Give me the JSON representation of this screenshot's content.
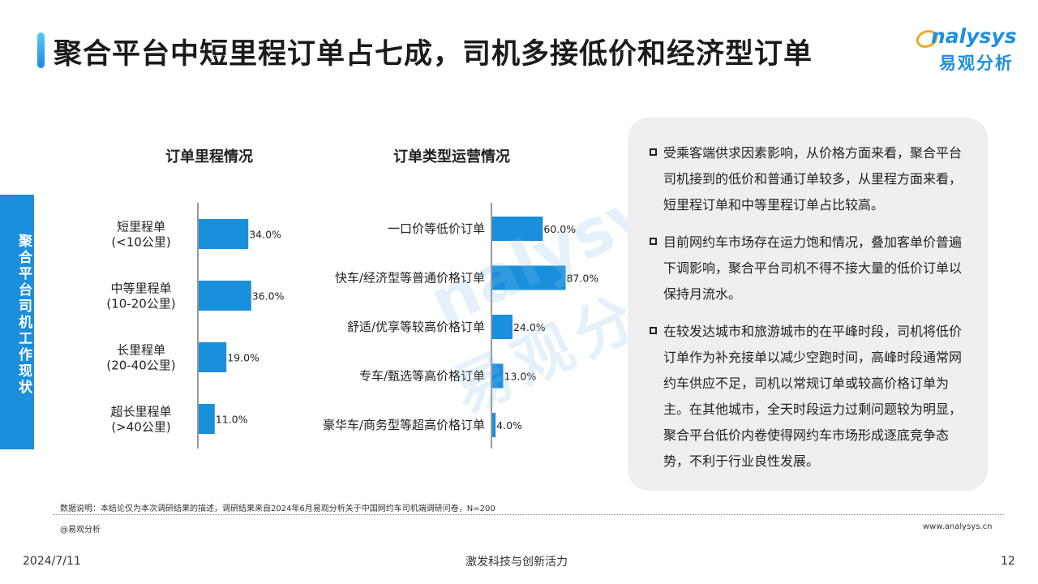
{
  "header": {
    "title": "聚合平台中短里程订单占七成，司机多接低价和经济型订单",
    "logo_en": "nalysys",
    "logo_cn": "易观分析"
  },
  "side_tab": {
    "label": "聚合平台司机工作现状"
  },
  "watermark": {
    "en": "nalysys",
    "cn": "易观分析"
  },
  "colors": {
    "accent": "#1a8fdc",
    "bar": "#1a8fdc",
    "panel": "#efefef"
  },
  "chart_data": [
    {
      "type": "bar",
      "orientation": "horizontal",
      "title": "订单里程情况",
      "categories": [
        [
          "短里程单",
          "(<10公里)"
        ],
        [
          "中等里程单",
          "(10-20公里)"
        ],
        [
          "长里程单",
          "(20-40公里)"
        ],
        [
          "超长里程单",
          "(>40公里)"
        ]
      ],
      "values": [
        34.0,
        36.0,
        19.0,
        11.0
      ],
      "value_labels": [
        "34.0%",
        "36.0%",
        "19.0%",
        "11.0%"
      ],
      "unit": "%",
      "xlim": [
        0,
        100
      ],
      "grid": false
    },
    {
      "type": "bar",
      "orientation": "horizontal",
      "title": "订单类型运营情况",
      "categories": [
        [
          "一口价等低价订单"
        ],
        [
          "快车/经济型等普通价格订单"
        ],
        [
          "舒适/优享等较高价格订单"
        ],
        [
          "专车/甄选等高价格订单"
        ],
        [
          "豪华车/商务型等超高价格订单"
        ]
      ],
      "values": [
        60.0,
        87.0,
        24.0,
        13.0,
        4.0
      ],
      "value_labels": [
        "60.0%",
        "87.0%",
        "24.0%",
        "13.0%",
        "4.0%"
      ],
      "unit": "%",
      "xlim": [
        0,
        100
      ],
      "grid": false
    }
  ],
  "insights": [
    "受乘客端供求因素影响，从价格方面来看，聚合平台司机接到的低价和普通订单较多，从里程方面来看，短里程订单和中等里程订单占比较高。",
    "目前网约车市场存在运力饱和情况，叠加客单价普遍下调影响，聚合平台司机不得不接大量的低价订单以保持月流水。",
    "在较发达城市和旅游城市的在平峰时段，司机将低价订单作为补充接单以减少空跑时间，高峰时段通常网约车供应不足，司机以常规订单或较高价格订单为主。在其他城市，全天时段运力过剩问题较为明显，聚合平台低价内卷使得网约车市场形成逐底竞争态势，不利于行业良性发展。"
  ],
  "footer": {
    "note": "数据说明：本结论仅为本次调研结果的描述，调研结果来自2024年6月易观分析关于中国网约车司机端调研问卷，N=200",
    "source": "@易观分析",
    "website": "www.analysys.cn",
    "date": "2024/7/11",
    "slogan": "激发科技与创新活力",
    "page": "12"
  }
}
